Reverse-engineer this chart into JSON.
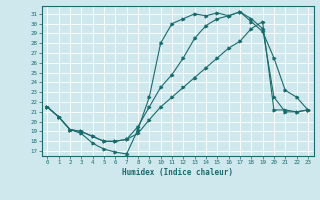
{
  "xlabel": "Humidex (Indice chaleur)",
  "bg_color": "#cfe8ee",
  "grid_color": "#ffffff",
  "line_color": "#1a6b6b",
  "xticks": [
    0,
    1,
    2,
    3,
    4,
    5,
    6,
    7,
    8,
    9,
    10,
    11,
    12,
    13,
    14,
    15,
    16,
    17,
    18,
    19,
    20,
    21,
    22,
    23
  ],
  "yticks": [
    17,
    18,
    19,
    20,
    21,
    22,
    23,
    24,
    25,
    26,
    27,
    28,
    29,
    30,
    31
  ],
  "line1_x": [
    0,
    1,
    2,
    3,
    4,
    5,
    6,
    7,
    8,
    9,
    10,
    11,
    12,
    13,
    14,
    15,
    16,
    17,
    18,
    19,
    20,
    21,
    22,
    23
  ],
  "line1_y": [
    21.5,
    20.5,
    19.2,
    18.8,
    17.8,
    17.2,
    16.9,
    16.7,
    19.2,
    22.5,
    28.0,
    30.0,
    30.5,
    31.0,
    30.8,
    31.1,
    30.8,
    31.2,
    30.2,
    29.2,
    26.5,
    23.2,
    22.5,
    21.2
  ],
  "line2_x": [
    0,
    1,
    2,
    3,
    4,
    5,
    6,
    7,
    8,
    9,
    10,
    11,
    12,
    13,
    14,
    15,
    16,
    17,
    18,
    19,
    20,
    21,
    22,
    23
  ],
  "line2_y": [
    21.5,
    20.5,
    19.2,
    19.0,
    18.5,
    18.0,
    18.0,
    18.2,
    18.8,
    20.2,
    21.5,
    22.5,
    23.5,
    24.5,
    25.5,
    26.5,
    27.5,
    28.2,
    29.5,
    30.2,
    21.2,
    21.2,
    21.0,
    21.2
  ],
  "line3_x": [
    0,
    1,
    2,
    3,
    4,
    5,
    6,
    7,
    8,
    9,
    10,
    11,
    12,
    13,
    14,
    15,
    16,
    17,
    18,
    19,
    20,
    21,
    22,
    23
  ],
  "line3_y": [
    21.5,
    20.5,
    19.2,
    19.0,
    18.5,
    18.0,
    18.0,
    18.2,
    19.5,
    21.5,
    23.5,
    24.8,
    26.5,
    28.5,
    29.8,
    30.5,
    30.8,
    31.2,
    30.5,
    29.5,
    22.5,
    21.0,
    21.0,
    21.2
  ]
}
